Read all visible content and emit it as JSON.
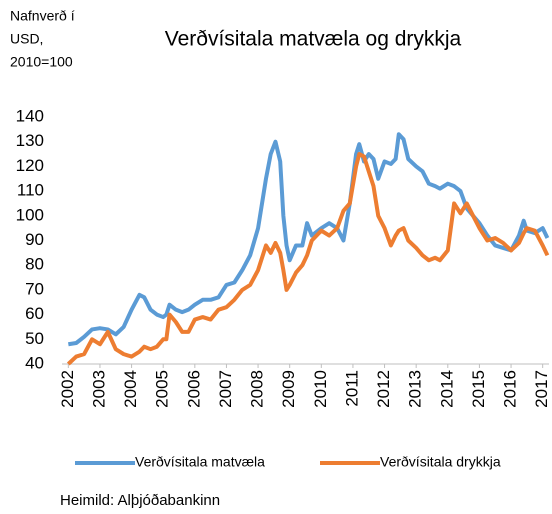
{
  "chart_data": {
    "type": "line",
    "title": "Verðvísitala matvæla og drykkja",
    "ylabel": [
      "Nafnverð í",
      "USD,",
      "2010=100"
    ],
    "source": "Heimild: Alþjóðabankinn",
    "x": [
      2002.0,
      2002.25,
      2002.5,
      2002.75,
      2003.0,
      2003.25,
      2003.5,
      2003.75,
      2004.0,
      2004.25,
      2004.4,
      2004.6,
      2004.8,
      2005.0,
      2005.1,
      2005.2,
      2005.4,
      2005.6,
      2005.8,
      2006.0,
      2006.25,
      2006.5,
      2006.75,
      2007.0,
      2007.25,
      2007.5,
      2007.75,
      2008.0,
      2008.25,
      2008.4,
      2008.55,
      2008.7,
      2008.8,
      2008.9,
      2009.0,
      2009.2,
      2009.4,
      2009.55,
      2009.7,
      2010.0,
      2010.25,
      2010.5,
      2010.7,
      2010.9,
      2011.1,
      2011.2,
      2011.35,
      2011.5,
      2011.65,
      2011.8,
      2012.0,
      2012.2,
      2012.35,
      2012.45,
      2012.6,
      2012.75,
      2013.0,
      2013.2,
      2013.4,
      2013.6,
      2013.75,
      2014.0,
      2014.2,
      2014.4,
      2014.6,
      2014.8,
      2015.0,
      2015.25,
      2015.5,
      2015.75,
      2016.0,
      2016.25,
      2016.4,
      2016.5,
      2016.75,
      2017.0,
      2017.15
    ],
    "series": [
      {
        "name": "Verðvísitala matvæla",
        "color": "#5b9bd5",
        "values": [
          48,
          48.5,
          51,
          54,
          54.5,
          54,
          52,
          55,
          62,
          68,
          67,
          62,
          60,
          59,
          60,
          64,
          62,
          61,
          62,
          64,
          66,
          66,
          67,
          72,
          73,
          78,
          84,
          95,
          115,
          125,
          130,
          122,
          100,
          88,
          82,
          88,
          88,
          97,
          92,
          95,
          97,
          95,
          90,
          105,
          125,
          129,
          122,
          125,
          123,
          115,
          122,
          121,
          123,
          133,
          131,
          123,
          120,
          118,
          113,
          112,
          111,
          113,
          112,
          110,
          103,
          100,
          97,
          92,
          88,
          87,
          86,
          92,
          98,
          94,
          93,
          95,
          91
        ]
      },
      {
        "name": "Verðvísitala drykkja",
        "color": "#ed7d31",
        "values": [
          40,
          43,
          44,
          50,
          48,
          53,
          46,
          44,
          43,
          45,
          47,
          46,
          47,
          50,
          50,
          60,
          57,
          53,
          53,
          58,
          59,
          58,
          62,
          63,
          66,
          70,
          72,
          78,
          88,
          85,
          89,
          85,
          78,
          70,
          72,
          77,
          80,
          84,
          90,
          94,
          92,
          95,
          102,
          105,
          120,
          125,
          124,
          118,
          112,
          100,
          95,
          88,
          92,
          94,
          95,
          90,
          87,
          84,
          82,
          83,
          82,
          86,
          105,
          101,
          105,
          100,
          95,
          90,
          91,
          89,
          86,
          89,
          93,
          95,
          94,
          88,
          84
        ]
      }
    ],
    "xlim": [
      2001.8,
      2017.2
    ],
    "xticks": [
      2002,
      2003,
      2004,
      2005,
      2006,
      2007,
      2008,
      2009,
      2010,
      2011,
      2012,
      2013,
      2014,
      2015,
      2016,
      2017
    ],
    "ylim": [
      40,
      140
    ],
    "yticks": [
      40,
      50,
      60,
      70,
      80,
      90,
      100,
      110,
      120,
      130,
      140
    ],
    "grid": false,
    "legend": "bottom"
  }
}
